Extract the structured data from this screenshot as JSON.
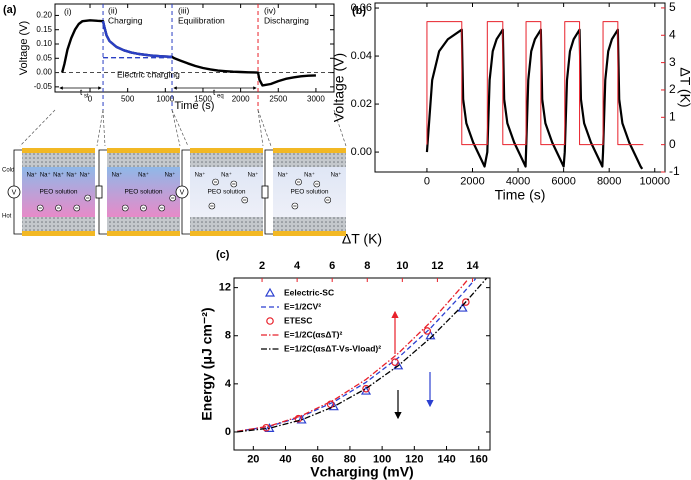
{
  "chart_data": [
    {
      "type": "line",
      "panel_label": "(a)",
      "xlabel": "Time (s)",
      "ylabel": "Voltage (V)",
      "xlim": [
        -465,
        3240
      ],
      "xticks": [
        0,
        500,
        1000,
        1500,
        2000,
        2500,
        3000
      ],
      "ylim": [
        -0.068,
        0.24
      ],
      "yticks": [
        -0.05,
        {
          "value": 0,
          "label": "0.00"
        },
        0.05,
        {
          "value": 0.1,
          "label": "0.10"
        },
        0.15,
        {
          "value": 0.2,
          "label": "0.20"
        }
      ],
      "series": [
        {
          "color": "#000000",
          "kind": "line",
          "x": [
            -370,
            -340,
            -300,
            -250,
            -200,
            -150,
            -100,
            0,
            100,
            173,
            190,
            220,
            260,
            350,
            450,
            550,
            650,
            800,
            950,
            1089,
            1120,
            1200,
            1300,
            1400,
            1500,
            1600,
            1700,
            1800,
            1900,
            2000,
            2100,
            2231,
            2250,
            2290,
            2400,
            2500,
            2600,
            2700,
            2800,
            2900,
            3000
          ],
          "values": [
            0.0,
            0.03,
            0.08,
            0.12,
            0.15,
            0.17,
            0.18,
            0.183,
            0.181,
            0.18,
            0.16,
            0.13,
            0.11,
            0.09,
            0.078,
            0.07,
            0.065,
            0.06,
            0.057,
            0.055,
            0.05,
            0.042,
            0.032,
            0.023,
            0.016,
            0.011,
            0.007,
            0.005,
            0.003,
            0.002,
            0.001,
            0.0,
            -0.025,
            -0.045,
            -0.04,
            -0.03,
            -0.022,
            -0.017,
            -0.013,
            -0.011,
            -0.01
          ]
        },
        {
          "color": "#2a3fc4",
          "kind": "line",
          "x": [
            173,
            190,
            220,
            260,
            350,
            450,
            550,
            650,
            800,
            950,
            1089
          ],
          "values": [
            0.18,
            0.16,
            0.13,
            0.11,
            0.09,
            0.078,
            0.07,
            0.065,
            0.06,
            0.057,
            0.055
          ]
        },
        {
          "color": "#2a3fc4",
          "kind": "line",
          "dash": "dash",
          "x": [
            173,
            1089
          ],
          "values": [
            0.052,
            0.052
          ]
        }
      ],
      "vlines": [
        {
          "x": 173,
          "color": "#2a3fc4"
        },
        {
          "x": 1089,
          "color": "#2a3fc4"
        },
        {
          "x": 2231,
          "color": "#e8202a"
        }
      ],
      "hlines": [
        0
      ],
      "annotations": {
        "stage_1": "(i)",
        "stage_2": "(ii)",
        "stage_3": "(iii)",
        "stage_4": "(iv)",
        "charging": "Charging",
        "equilibration": "Equilibration",
        "discharging": "Discharging",
        "electric_charging": "Electric charging",
        "t_st": {
          "text": "t",
          "sub": "st"
        },
        "t_eq": {
          "text": "t",
          "sub": "eq"
        }
      }
    },
    {
      "type": "line",
      "panel_label": "(b)",
      "xlabel": "Time (s)",
      "ylabel": "Voltage (V)",
      "y2label": "ΔT (K)",
      "y2color": "#e8202a",
      "xlim": [
        -2280,
        10450
      ],
      "xticks": [
        0,
        2000,
        4000,
        6000,
        8000,
        10000
      ],
      "ylim": [
        -0.0083,
        0.0621
      ],
      "yticks": [
        {
          "value": 0,
          "label": "0.00"
        },
        0.02,
        0.04,
        0.06
      ],
      "y2lim": [
        -1,
        5.18
      ],
      "y2ticks": [
        -1,
        0,
        1,
        2,
        3,
        4,
        5
      ],
      "series": [
        {
          "color": "#000000",
          "kind": "line",
          "axis": "y",
          "x": [
            0,
            230,
            535,
            918,
            1377,
            1530,
            1590,
            1730,
            2030,
            2330,
            2530,
            2650,
            2752,
            2888,
            3058,
            3262,
            3330,
            3390,
            3530,
            3830,
            4130,
            4330,
            4350,
            4448,
            4578,
            4740,
            4935,
            5000,
            5060,
            5200,
            5500,
            5800,
            6000,
            6050,
            6148,
            6278,
            6440,
            6635,
            6700,
            6760,
            6900,
            7200,
            7500,
            7700,
            7730,
            7828,
            7958,
            8120,
            8315,
            8380,
            8440,
            8580,
            8880,
            9180,
            9380,
            9450
          ],
          "values": [
            0,
            0.03,
            0.042,
            0.047,
            0.05,
            0.051,
            0.022,
            0.012,
            0.004,
            -0.002,
            -0.006,
            0,
            0.03,
            0.042,
            0.047,
            0.05,
            0.051,
            0.022,
            0.012,
            0.004,
            -0.002,
            -0.006,
            0,
            0.03,
            0.042,
            0.047,
            0.05,
            0.051,
            0.022,
            0.012,
            0.004,
            -0.002,
            -0.006,
            0,
            0.03,
            0.042,
            0.047,
            0.05,
            0.051,
            0.022,
            0.012,
            0.004,
            -0.002,
            -0.006,
            0,
            0.03,
            0.042,
            0.047,
            0.05,
            0.051,
            0.022,
            0.012,
            0.004,
            -0.002,
            -0.006,
            -0.007
          ]
        },
        {
          "color": "#e8202a",
          "kind": "line",
          "axis": "y2",
          "x": [
            0,
            0,
            1530,
            1530,
            2650,
            2650,
            3330,
            3330,
            4350,
            4350,
            5000,
            5000,
            6050,
            6050,
            6700,
            6700,
            7730,
            7730,
            8380,
            8380,
            9500
          ],
          "values": [
            0,
            4.5,
            4.5,
            0,
            0,
            4.5,
            4.5,
            0,
            0,
            4.5,
            4.5,
            0,
            0,
            4.5,
            4.5,
            0,
            0,
            4.5,
            4.5,
            0,
            0
          ]
        }
      ]
    },
    {
      "type": "scatter",
      "panel_label": "(c)",
      "xlabel": "Vcharging (mV)",
      "xlabel_color": "#2b3fd0",
      "ylabel": "Energy (μJ cm⁻²)",
      "x2label": "ΔT (K)",
      "x2color": "#e8202a",
      "xlim": [
        8,
        167
      ],
      "xticks": [
        20,
        40,
        60,
        80,
        100,
        120,
        140,
        160
      ],
      "x2lim": [
        0.4,
        15
      ],
      "x2ticks": [
        2,
        4,
        6,
        8,
        10,
        12,
        14
      ],
      "ylim": [
        -1.5,
        12.8
      ],
      "yticks": [
        0,
        4,
        8,
        12
      ],
      "series": [
        {
          "name": "Eelectric-SC",
          "color": "#2b3fd0",
          "kind": "markers",
          "marker": "triangle",
          "x": [
            30,
            50,
            70,
            90,
            110,
            130,
            150
          ],
          "values": [
            0.3,
            1.0,
            2.1,
            3.4,
            5.5,
            8.0,
            10.3
          ]
        },
        {
          "name": "E=1/2CV²",
          "color": "#2b3fd0",
          "kind": "line",
          "dash": "dash",
          "x": [
            10,
            30,
            50,
            70,
            90,
            110,
            130,
            150,
            158
          ],
          "values": [
            0.05,
            0.46,
            1.28,
            2.5,
            4.13,
            6.17,
            8.62,
            11.5,
            12.73
          ]
        },
        {
          "name": "ETESC",
          "color": "#e8202a",
          "kind": "markers",
          "marker": "circle",
          "x": [
            28,
            48,
            68,
            90,
            108,
            128,
            152
          ],
          "values": [
            0.35,
            1.1,
            2.3,
            3.6,
            5.8,
            8.4,
            10.8
          ]
        },
        {
          "name": "E=1/2C(αsΔT)²",
          "color": "#e8202a",
          "kind": "line",
          "dash": "dashdot",
          "x": [
            10,
            30,
            50,
            70,
            90,
            110,
            130,
            150,
            153
          ],
          "values": [
            0.05,
            0.49,
            1.35,
            2.65,
            4.37,
            6.53,
            9.13,
            12.15,
            12.64
          ]
        },
        {
          "name": "E=1/2C(αsΔT-Vs-Vload)²",
          "color": "#000000",
          "kind": "line",
          "dash": "dashdot",
          "x": [
            10,
            30,
            50,
            70,
            90,
            110,
            130,
            150,
            165
          ],
          "values": [
            0.01,
            0.31,
            1.01,
            2.11,
            3.61,
            5.51,
            7.81,
            10.51,
            12.8
          ]
        }
      ]
    }
  ],
  "diagram": {
    "cells": [
      {
        "cold": "Cold",
        "hot": "Hot",
        "ions": [
          "Na⁺",
          "Na⁺",
          "Na⁺",
          "Na⁺",
          "Na⁺"
        ],
        "solution": "PEO solution",
        "meter": "V"
      },
      {
        "ions": [
          "Na⁺",
          "Na⁺",
          "Na⁺"
        ],
        "solution": "PEO solution"
      },
      {
        "ions": [
          "Na⁺",
          "Na⁺",
          "Na⁺"
        ],
        "solution": "PEO solution",
        "meter": "V"
      },
      {
        "ions": [
          "Na⁺",
          "Na⁺",
          "Na⁺"
        ],
        "solution": "PEO solution"
      }
    ]
  }
}
